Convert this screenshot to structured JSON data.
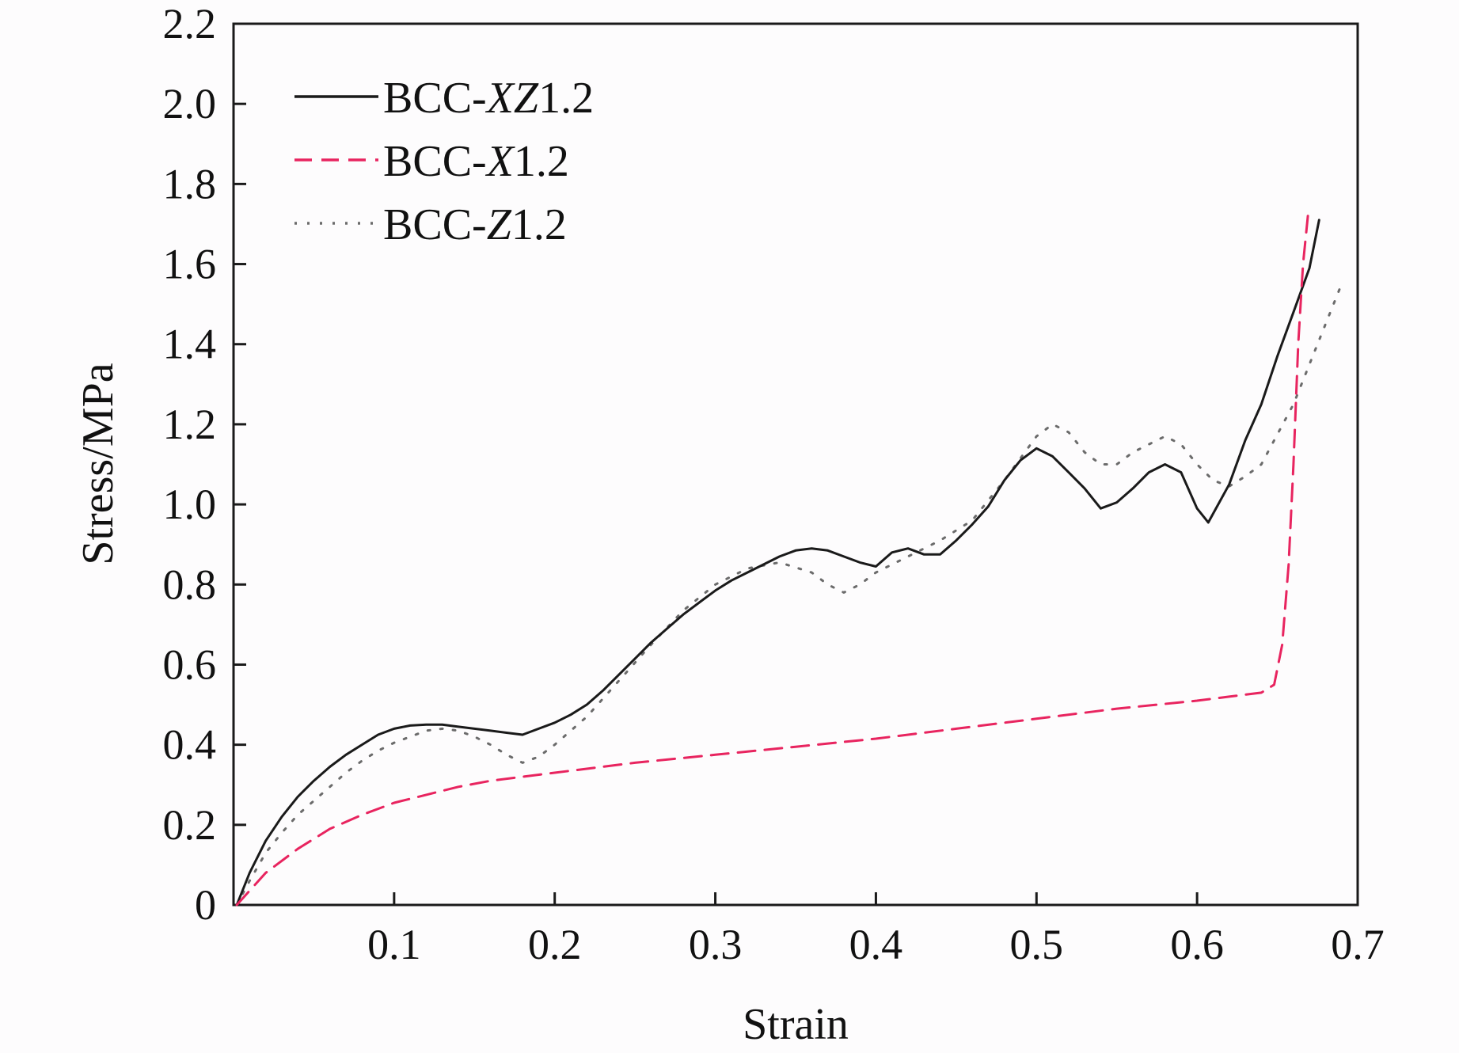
{
  "chart_data": {
    "type": "line",
    "title": "",
    "xlabel": "Strain",
    "ylabel": "Stress/MPa",
    "xlim": [
      0,
      0.7
    ],
    "ylim": [
      0,
      2.2
    ],
    "x_ticks": [
      0.1,
      0.2,
      0.3,
      0.4,
      0.5,
      0.6,
      0.7
    ],
    "x_tick_labels": [
      "0.1",
      "0.2",
      "0.3",
      "0.4",
      "0.5",
      "0.6",
      "0.7"
    ],
    "y_ticks": [
      0,
      0.2,
      0.4,
      0.6,
      0.8,
      1.0,
      1.2,
      1.4,
      1.6,
      1.8,
      2.0,
      2.2
    ],
    "y_tick_labels": [
      "0",
      "0.2",
      "0.4",
      "0.6",
      "0.8",
      "1.0",
      "1.2",
      "1.4",
      "1.6",
      "1.8",
      "2.0",
      "2.2"
    ],
    "grid": false,
    "legend_position": "top-left",
    "series": [
      {
        "name_prefix": "BCC-",
        "name_italic": "XZ",
        "name_suffix": "1.2",
        "style": "solid",
        "color": "#1a1a1a",
        "x": [
          0.002,
          0.01,
          0.02,
          0.03,
          0.04,
          0.05,
          0.06,
          0.07,
          0.08,
          0.09,
          0.1,
          0.11,
          0.12,
          0.13,
          0.14,
          0.15,
          0.16,
          0.17,
          0.18,
          0.19,
          0.2,
          0.21,
          0.22,
          0.23,
          0.24,
          0.25,
          0.26,
          0.27,
          0.28,
          0.29,
          0.3,
          0.31,
          0.32,
          0.33,
          0.34,
          0.35,
          0.36,
          0.37,
          0.38,
          0.39,
          0.4,
          0.41,
          0.42,
          0.43,
          0.44,
          0.45,
          0.46,
          0.47,
          0.48,
          0.49,
          0.5,
          0.51,
          0.52,
          0.53,
          0.54,
          0.55,
          0.56,
          0.57,
          0.58,
          0.59,
          0.6,
          0.607,
          0.62,
          0.63,
          0.64,
          0.65,
          0.66,
          0.67,
          0.676
        ],
        "y": [
          0.0,
          0.08,
          0.16,
          0.22,
          0.27,
          0.31,
          0.345,
          0.375,
          0.4,
          0.425,
          0.44,
          0.448,
          0.45,
          0.45,
          0.445,
          0.44,
          0.435,
          0.43,
          0.425,
          0.44,
          0.455,
          0.475,
          0.5,
          0.535,
          0.575,
          0.615,
          0.655,
          0.69,
          0.725,
          0.755,
          0.785,
          0.81,
          0.83,
          0.85,
          0.87,
          0.885,
          0.89,
          0.885,
          0.87,
          0.855,
          0.845,
          0.88,
          0.89,
          0.875,
          0.875,
          0.91,
          0.95,
          0.995,
          1.06,
          1.11,
          1.14,
          1.12,
          1.08,
          1.04,
          0.99,
          1.005,
          1.04,
          1.08,
          1.1,
          1.08,
          0.99,
          0.955,
          1.05,
          1.16,
          1.25,
          1.37,
          1.48,
          1.59,
          1.71
        ]
      },
      {
        "name_prefix": "BCC-",
        "name_italic": "X",
        "name_suffix": "1.2",
        "style": "dashed",
        "color": "#e8245f",
        "x": [
          0.002,
          0.02,
          0.04,
          0.06,
          0.08,
          0.1,
          0.12,
          0.14,
          0.16,
          0.18,
          0.2,
          0.25,
          0.3,
          0.35,
          0.4,
          0.45,
          0.5,
          0.55,
          0.6,
          0.62,
          0.64,
          0.648,
          0.653,
          0.657,
          0.66,
          0.663,
          0.666,
          0.669
        ],
        "y": [
          0.0,
          0.08,
          0.14,
          0.19,
          0.225,
          0.255,
          0.275,
          0.295,
          0.31,
          0.32,
          0.33,
          0.355,
          0.375,
          0.395,
          0.415,
          0.44,
          0.465,
          0.49,
          0.51,
          0.52,
          0.53,
          0.55,
          0.65,
          0.85,
          1.1,
          1.4,
          1.6,
          1.72
        ]
      },
      {
        "name_prefix": "BCC-",
        "name_italic": "Z",
        "name_suffix": "1.2",
        "style": "dotted",
        "color": "#6b6b6b",
        "x": [
          0.002,
          0.01,
          0.02,
          0.03,
          0.04,
          0.05,
          0.06,
          0.07,
          0.08,
          0.09,
          0.1,
          0.11,
          0.12,
          0.13,
          0.14,
          0.15,
          0.16,
          0.17,
          0.18,
          0.19,
          0.2,
          0.22,
          0.24,
          0.26,
          0.28,
          0.3,
          0.32,
          0.34,
          0.36,
          0.37,
          0.38,
          0.39,
          0.4,
          0.42,
          0.44,
          0.46,
          0.48,
          0.5,
          0.51,
          0.52,
          0.53,
          0.54,
          0.55,
          0.56,
          0.57,
          0.58,
          0.59,
          0.6,
          0.61,
          0.62,
          0.63,
          0.64,
          0.66,
          0.68,
          0.69
        ],
        "y": [
          0.0,
          0.06,
          0.13,
          0.18,
          0.225,
          0.26,
          0.295,
          0.33,
          0.36,
          0.385,
          0.405,
          0.42,
          0.435,
          0.44,
          0.435,
          0.42,
          0.4,
          0.375,
          0.355,
          0.37,
          0.4,
          0.47,
          0.56,
          0.65,
          0.735,
          0.8,
          0.84,
          0.855,
          0.83,
          0.8,
          0.78,
          0.8,
          0.83,
          0.87,
          0.91,
          0.96,
          1.06,
          1.17,
          1.2,
          1.18,
          1.13,
          1.1,
          1.1,
          1.13,
          1.15,
          1.17,
          1.15,
          1.1,
          1.06,
          1.045,
          1.07,
          1.1,
          1.25,
          1.45,
          1.55
        ]
      }
    ]
  }
}
